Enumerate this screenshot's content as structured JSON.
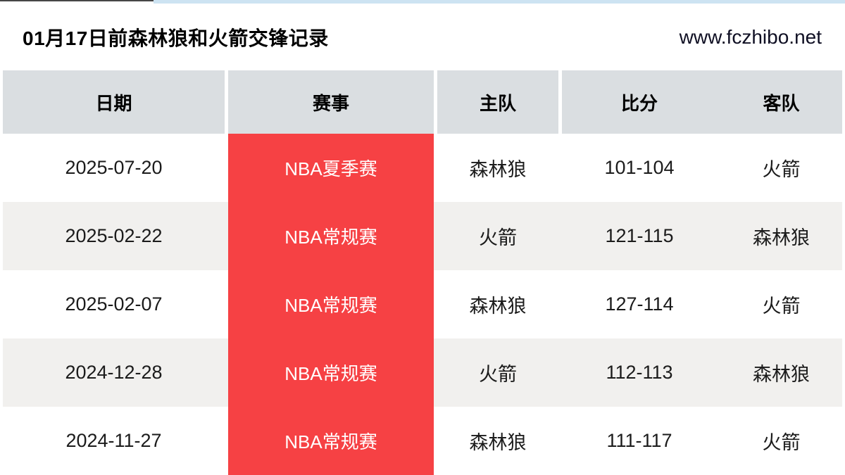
{
  "title_bar": {
    "title": "01月17日前森林狼和火箭交锋记录",
    "site_url": "www.fczhibo.net"
  },
  "table": {
    "columns": [
      "日期",
      "赛事",
      "主队",
      "比分",
      "客队"
    ],
    "rows": [
      {
        "date": "2025-07-20",
        "event": "NBA夏季赛",
        "home": "森林狼",
        "score": "101-104",
        "away": "火箭"
      },
      {
        "date": "2025-02-22",
        "event": "NBA常规赛",
        "home": "火箭",
        "score": "121-115",
        "away": "森林狼"
      },
      {
        "date": "2025-02-07",
        "event": "NBA常规赛",
        "home": "森林狼",
        "score": "127-114",
        "away": "火箭"
      },
      {
        "date": "2024-12-28",
        "event": "NBA常规赛",
        "home": "火箭",
        "score": "112-113",
        "away": "森林狼"
      },
      {
        "date": "2024-11-27",
        "event": "NBA常规赛",
        "home": "森林狼",
        "score": "111-117",
        "away": "火箭"
      }
    ]
  },
  "colors": {
    "event_badge_red": "#f64144",
    "header_bg": "#dadee1",
    "row_alt_bg": "#f1f0ee",
    "top_strip_blue": "#cde3f2"
  }
}
